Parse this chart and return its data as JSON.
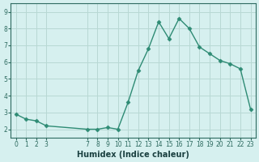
{
  "x": [
    0,
    1,
    2,
    3,
    7,
    8,
    9,
    10,
    11,
    12,
    13,
    14,
    15,
    16,
    17,
    18,
    19,
    20,
    21,
    22,
    23
  ],
  "y": [
    2.9,
    2.6,
    2.5,
    2.2,
    2.0,
    2.0,
    2.1,
    2.0,
    3.6,
    5.5,
    6.8,
    8.4,
    7.4,
    8.6,
    8.0,
    6.9,
    6.5,
    6.1,
    5.9,
    5.6,
    3.2
  ],
  "xlabel": "Humidex (Indice chaleur)",
  "line_color": "#2e8b74",
  "marker": "D",
  "markersize": 2.5,
  "bg_color": "#d6f0ef",
  "grid_color": "#b8d8d4",
  "tick_color": "#2e6b60",
  "label_color": "#1a4040",
  "ylim": [
    1.5,
    9.5
  ],
  "xlim": [
    -0.5,
    23.5
  ],
  "yticks": [
    2,
    3,
    4,
    5,
    6,
    7,
    8,
    9
  ],
  "xticks": [
    0,
    1,
    2,
    3,
    7,
    8,
    9,
    10,
    11,
    12,
    13,
    14,
    15,
    16,
    17,
    18,
    19,
    20,
    21,
    22,
    23
  ]
}
